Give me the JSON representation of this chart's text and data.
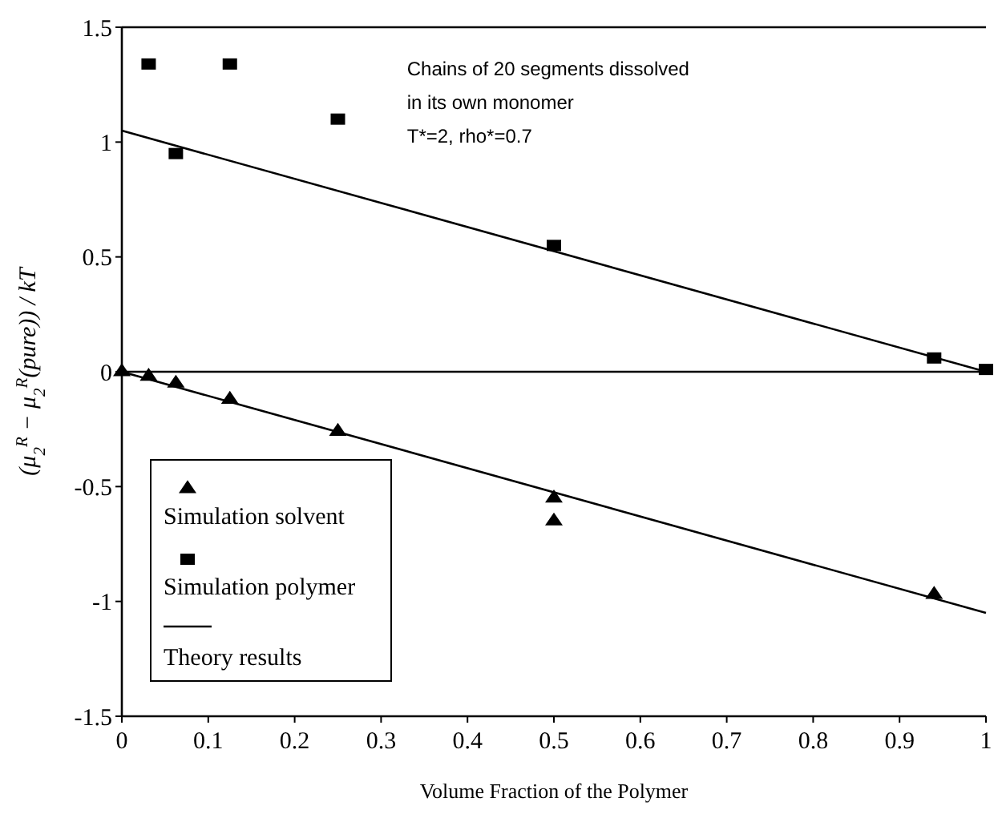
{
  "chart_data": {
    "type": "scatter",
    "xlabel": "Volume Fraction of the Polymer",
    "ylabel": "(μ$_{2}$$^{R}$ − μ$_{2}$$^{R}$(pure)) / kT",
    "xlim": [
      0,
      1
    ],
    "ylim": [
      -1.5,
      1.5
    ],
    "xticks": [
      0,
      0.1,
      0.2,
      0.3,
      0.4,
      0.5,
      0.6,
      0.7,
      0.8,
      0.9,
      1
    ],
    "yticks": [
      -1.5,
      -1,
      -0.5,
      0,
      0.5,
      1,
      1.5
    ],
    "grid": false,
    "legend": "bottom left",
    "annotations": [
      "Chains of 20 segments dissolved",
      "in its own monomer",
      "T*=2, rho*=0.7"
    ],
    "ref_lines": [
      {
        "axis": "y",
        "value": 0,
        "color": "#000000"
      }
    ],
    "series": [
      {
        "name": "Simulation solvent",
        "marker": "triangle",
        "color": "#000000",
        "x": [
          0,
          0.031,
          0.0625,
          0.125,
          0.25,
          0.5,
          0.5,
          0.94
        ],
        "values": [
          0,
          -0.02,
          -0.05,
          -0.12,
          -0.26,
          -0.55,
          -0.65,
          -0.97
        ]
      },
      {
        "name": "Simulation polymer",
        "marker": "square",
        "color": "#000000",
        "x": [
          0.031,
          0.0625,
          0.125,
          0.25,
          0.5,
          0.94,
          1
        ],
        "values": [
          1.34,
          0.95,
          1.34,
          1.1,
          0.55,
          0.06,
          0.01
        ]
      },
      {
        "name": "Theory results",
        "type": "line",
        "marker": "none",
        "line_style": "solid",
        "color": "#000000",
        "x": [
          0,
          1
        ],
        "values": [
          1.05,
          0
        ]
      },
      {
        "type": "line",
        "marker": "none",
        "line_style": "solid",
        "color": "#000000",
        "x": [
          0,
          1
        ],
        "values": [
          0,
          -1.05
        ]
      }
    ]
  }
}
